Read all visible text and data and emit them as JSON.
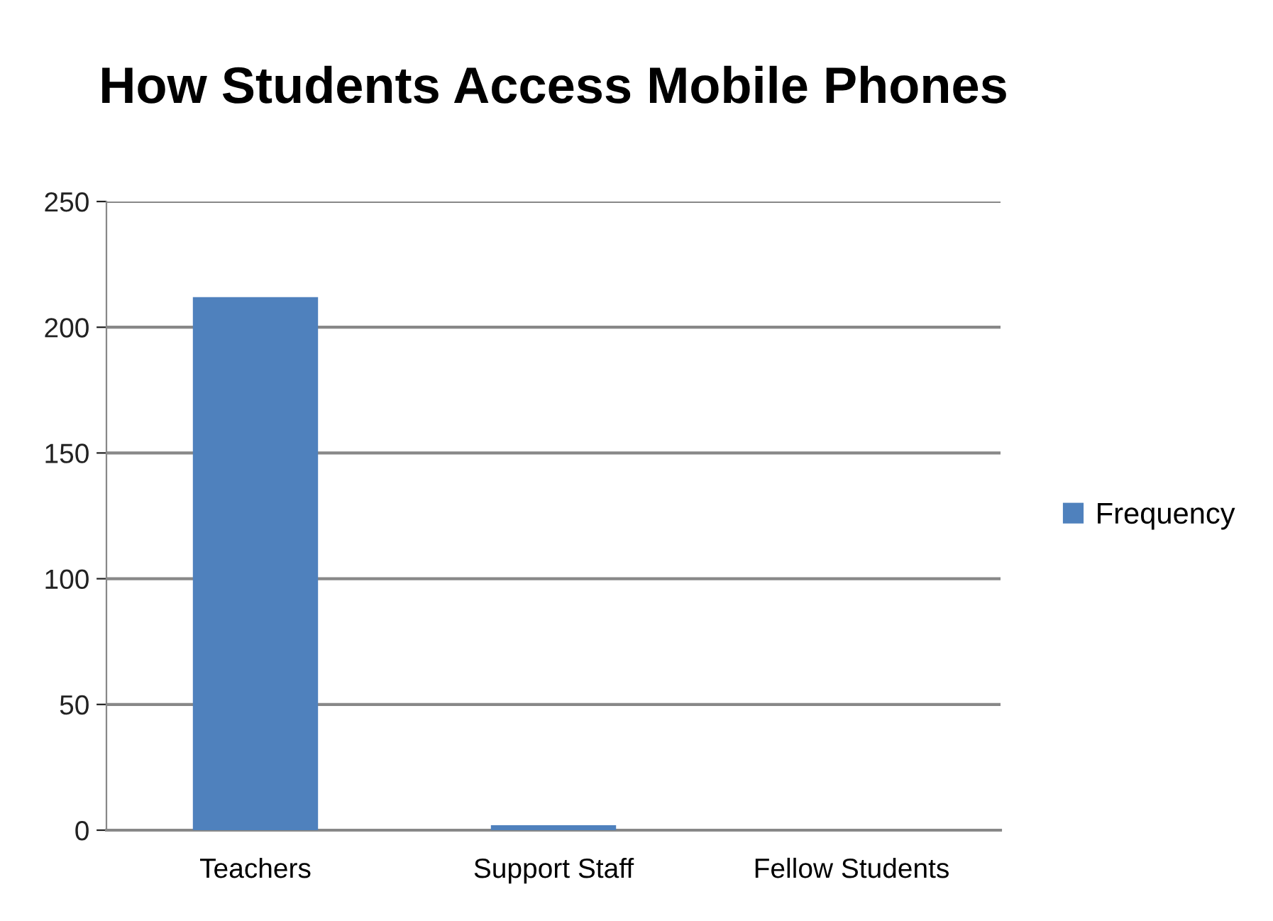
{
  "chart_data": {
    "type": "bar",
    "title": "How Students Access Mobile Phones",
    "categories": [
      "Teachers",
      "Support Staff",
      "Fellow Students"
    ],
    "series": [
      {
        "name": "Frequency",
        "color": "#4f81bd",
        "values": [
          212,
          2,
          0
        ]
      }
    ],
    "ylim": [
      0,
      250
    ],
    "yticks": [
      0,
      50,
      100,
      150,
      200,
      250
    ],
    "grid": "y",
    "legend": "right"
  }
}
